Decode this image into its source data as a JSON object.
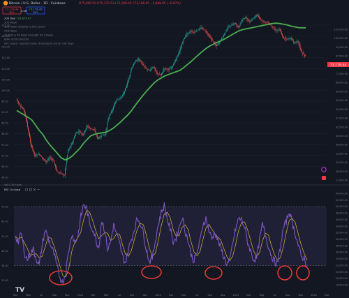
{
  "header": {
    "title": "Bitcoin / U.S. Dollar · 1D · Coinbase",
    "ohlc": "O75,906.50 H75,170.53 L73,190.05 C73,180.05 −5,888.65 (−6.97%)",
    "sell_price": "73,178.44",
    "sell_label": "SELL",
    "spread": "2.06",
    "buy_price": "73,178.46",
    "buy_label": "BUY"
  },
  "indicators": [
    {
      "label": "200 Day",
      "value": "103,870.47"
    },
    {
      "label": "20D Week",
      "value": ""
    },
    {
      "label": "20D Week Volatility 3.50% Down",
      "value": ""
    },
    {
      "label": "20D Week",
      "value": ""
    },
    {
      "label": "21/50D & 50 Daily Strength 50 3 Down",
      "value": ""
    },
    {
      "label": "EMA 20/50/100/200",
      "value": ""
    },
    {
      "label": "BTC Global Liquidity Index (Extended) LB(rot) 108 Days",
      "value": ""
    }
  ],
  "rsi_pane": {
    "title": "RSI 14 close",
    "volume_label": "Vol 0.19 close"
  },
  "chart_data": [
    {
      "type": "line",
      "name": "price_pane",
      "x_ticks": [
        "Mar",
        "May",
        "Jul",
        "Sep",
        "Nov",
        "2023",
        "Mar",
        "May",
        "Jul",
        "Sep",
        "Nov",
        "2024",
        "Mar",
        "May",
        "Jul",
        "Sep",
        "Nov",
        "2025",
        "Mar",
        "May",
        "Jul",
        "Sep",
        "Nov",
        "2026",
        "Mar"
      ],
      "left_axis_ticks": [
        "103.00",
        "102.50",
        "102.00",
        "101.50",
        "101.00",
        "100.50",
        "100.00",
        "99.50",
        "99.00",
        "98.50",
        "98.00",
        "97.50",
        "97.00",
        "96.50",
        "96.00"
      ],
      "right_axis_ticks": [
        "120,000.00",
        "105,000.00",
        "95,000.00",
        "87,500.00",
        "80,000.00",
        "72,500.00",
        "66,000.00",
        "60,000.00",
        "55,000.00",
        "50,000.00",
        "47,500.00",
        "43,500.00",
        "40,000.00",
        "36,000.00",
        "33,000.00",
        "30,000.00",
        "28,500.00",
        "27,000.00"
      ],
      "ylim": [
        15000,
        130000
      ],
      "series": [
        {
          "values": [
            43000,
            39000,
            37500,
            30000,
            24000,
            21000,
            21500,
            20500,
            19500,
            20500,
            19800,
            17200,
            16800,
            16500,
            22500,
            24500,
            27800,
            28500,
            27200,
            30500,
            29500,
            29200,
            26000,
            27000,
            27500,
            34500,
            37500,
            42500,
            43000,
            46000,
            52000,
            62000,
            68000,
            70500,
            66000,
            62500,
            61000,
            64000,
            58500,
            57500,
            63000,
            61500,
            63500,
            69500,
            77000,
            89000,
            96000,
            99000,
            98000,
            101000,
            104000,
            99500,
            94000,
            88000,
            83000,
            88000,
            95000,
            104000,
            107000,
            110000,
            104000,
            116000,
            118000,
            112000,
            117000,
            122000,
            114000,
            112000,
            110000,
            106000,
            100000,
            102000,
            92000,
            90000,
            91000,
            86000,
            88000,
            76000,
            73200
          ]
        },
        {
          "name": "200 Day",
          "values": [
            37000,
            36000,
            35000,
            34000,
            33000,
            31000,
            29000,
            27500,
            25500,
            24000,
            22800,
            21600,
            20500,
            20000,
            20300,
            21000,
            22000,
            23000,
            24500,
            25800,
            27000,
            27500,
            27800,
            28000,
            28200,
            28800,
            29600,
            30800,
            32000,
            33500,
            35000,
            37000,
            39500,
            42000,
            44500,
            47000,
            49500,
            52000,
            54000,
            55500,
            57000,
            58000,
            59000,
            60000,
            61000,
            63000,
            65500,
            68000,
            71000,
            74000,
            77000,
            80000,
            82500,
            84500,
            86500,
            88000,
            90000,
            92500,
            95000,
            97500,
            100000,
            101500,
            102500,
            103500,
            104500,
            105500,
            106500,
            107500,
            108500,
            109500,
            110000,
            109500,
            108500,
            107500,
            106000,
            105000,
            104000,
            103800,
            103870
          ]
        }
      ]
    },
    {
      "type": "line",
      "name": "rsi_pane",
      "y_ticks": [
        "70.00",
        "60.00",
        "50.00",
        "40.00",
        "30.00",
        "20.00"
      ],
      "right_axis_ticks": [
        "44,000.00",
        "42,000.00",
        "40,000.00",
        "38,000.00",
        "36,000.00",
        "34,000.00",
        "32,000.00",
        "30,000.00",
        "28,000.00",
        "26,000.00",
        "24,000.00",
        "22,000.00",
        "20,000.00",
        "18,000.00",
        "16,000.00"
      ],
      "ylim": [
        17,
        80
      ],
      "bands": {
        "upper": 70,
        "lower": 30
      },
      "series": [
        {
          "name": "RSI 14",
          "values": [
            50,
            46,
            52,
            39,
            34,
            38,
            41,
            35,
            30,
            44,
            54,
            49,
            43,
            38,
            29,
            22,
            18,
            27,
            41,
            52,
            45,
            50,
            63,
            72,
            68,
            58,
            55,
            48,
            42,
            61,
            54,
            41,
            46,
            58,
            51,
            45,
            36,
            32,
            41,
            48,
            55,
            62,
            59,
            52,
            41,
            33,
            35,
            47,
            58,
            66,
            71,
            62,
            55,
            46,
            49,
            56,
            63,
            54,
            47,
            38,
            33,
            39,
            46,
            58,
            62,
            54,
            48,
            53,
            47,
            42,
            36,
            31,
            33,
            45,
            55,
            62,
            61,
            56,
            46,
            40,
            34,
            35,
            47,
            58,
            51,
            43,
            37,
            33,
            31,
            42,
            55,
            60,
            67,
            59,
            52,
            44,
            36,
            35,
            30
          ]
        }
      ]
    }
  ]
}
